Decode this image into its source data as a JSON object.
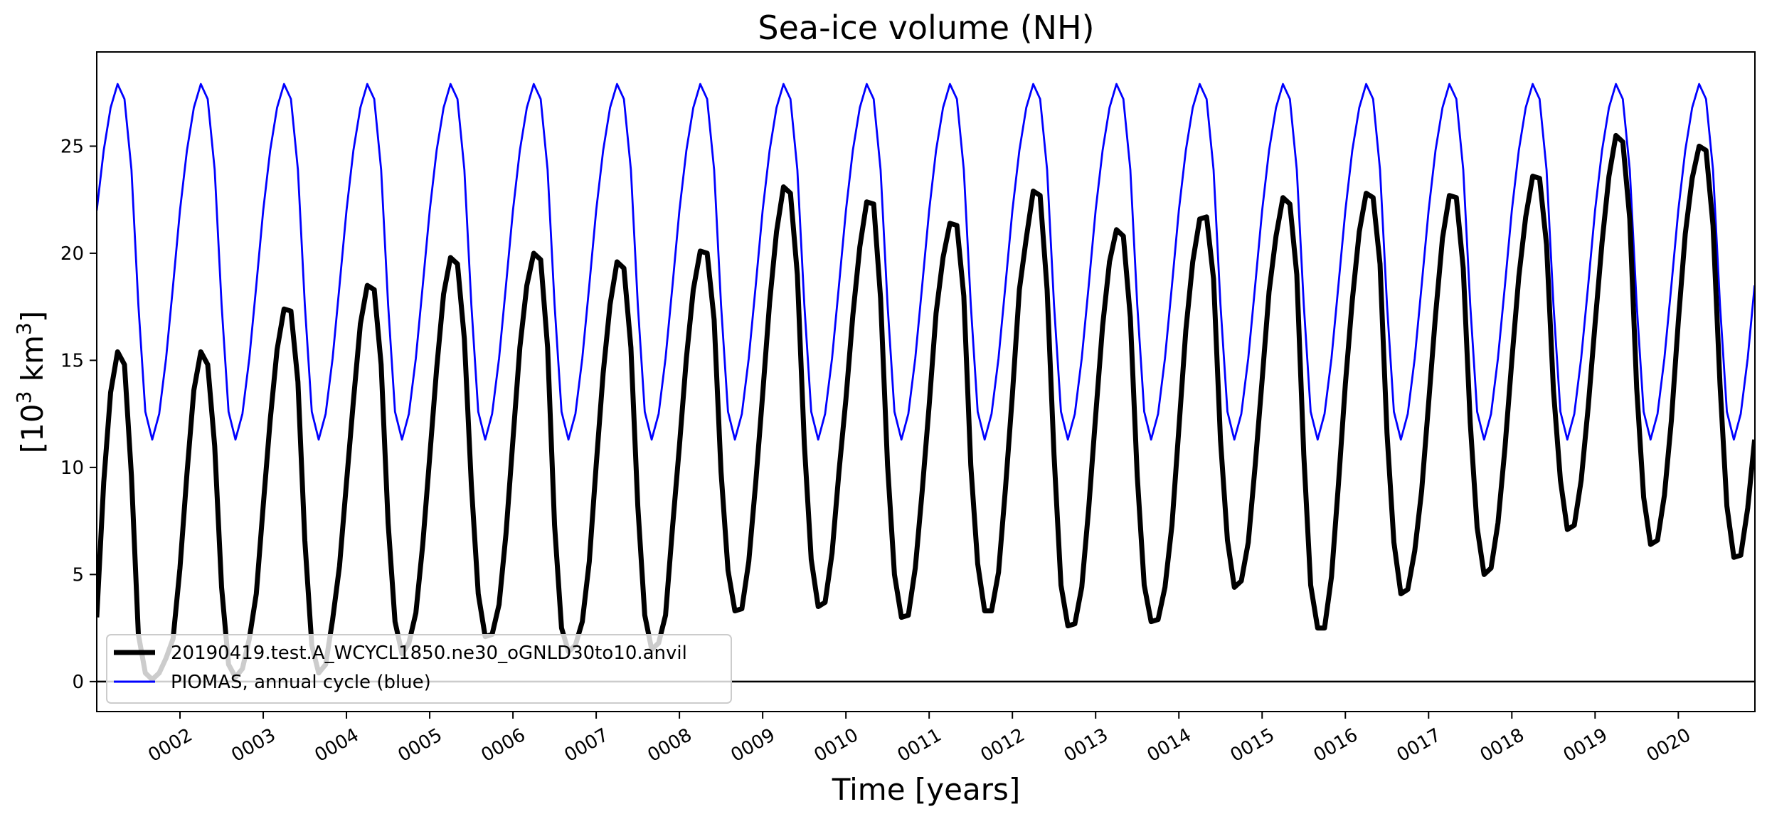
{
  "chart_data": {
    "type": "line",
    "title": "Sea-ice volume (NH)",
    "xlabel": "Time [years]",
    "ylabel": "[10³ km³]",
    "ylabel_base": "[10",
    "ylabel_exp1": "3",
    "ylabel_mid": " km",
    "ylabel_exp2": "3",
    "ylabel_end": "]",
    "xlim": [
      1.0,
      20.92
    ],
    "ylim": [
      -1.4,
      29.4
    ],
    "x_ticks": [
      {
        "value": 2,
        "label": "0002"
      },
      {
        "value": 3,
        "label": "0003"
      },
      {
        "value": 4,
        "label": "0004"
      },
      {
        "value": 5,
        "label": "0005"
      },
      {
        "value": 6,
        "label": "0006"
      },
      {
        "value": 7,
        "label": "0007"
      },
      {
        "value": 8,
        "label": "0008"
      },
      {
        "value": 9,
        "label": "0009"
      },
      {
        "value": 10,
        "label": "0010"
      },
      {
        "value": 11,
        "label": "0011"
      },
      {
        "value": 12,
        "label": "0012"
      },
      {
        "value": 13,
        "label": "0013"
      },
      {
        "value": 14,
        "label": "0014"
      },
      {
        "value": 15,
        "label": "0015"
      },
      {
        "value": 16,
        "label": "0016"
      },
      {
        "value": 17,
        "label": "0017"
      },
      {
        "value": 18,
        "label": "0018"
      },
      {
        "value": 19,
        "label": "0019"
      },
      {
        "value": 20,
        "label": "0020"
      }
    ],
    "y_ticks": [
      {
        "value": 0,
        "label": "0"
      },
      {
        "value": 5,
        "label": "5"
      },
      {
        "value": 10,
        "label": "10"
      },
      {
        "value": 15,
        "label": "15"
      },
      {
        "value": 20,
        "label": "20"
      },
      {
        "value": 25,
        "label": "25"
      }
    ],
    "zero_line": 0,
    "grid": false,
    "legend_position": "bottom-left",
    "series": [
      {
        "name": "20190419.test.A_WCYCL1850.ne30_oGNLD30to10.anvil",
        "color": "#000000",
        "style": "thick",
        "start_year": 1,
        "monthly_values_by_year": [
          [
            3.0,
            9.3,
            13.5,
            15.4,
            14.8,
            9.6,
            2.2,
            0.4,
            0.1,
            0.4,
            1.1,
            2.0
          ],
          [
            5.3,
            9.7,
            13.6,
            15.4,
            14.8,
            11.0,
            4.4,
            0.8,
            0.2,
            0.6,
            2.0,
            4.1
          ],
          [
            8.2,
            12.2,
            15.5,
            17.4,
            17.3,
            14.0,
            6.6,
            1.7,
            0.4,
            0.8,
            2.9,
            5.4
          ],
          [
            9.3,
            13.1,
            16.7,
            18.5,
            18.3,
            14.8,
            7.4,
            2.8,
            1.3,
            1.8,
            3.2,
            6.4
          ],
          [
            10.5,
            14.6,
            18.1,
            19.8,
            19.5,
            16.0,
            9.2,
            4.1,
            2.1,
            2.2,
            3.6,
            6.9
          ],
          [
            11.3,
            15.6,
            18.5,
            20.0,
            19.7,
            15.6,
            7.3,
            2.5,
            1.4,
            1.7,
            2.8,
            5.6
          ],
          [
            10.1,
            14.4,
            17.6,
            19.6,
            19.3,
            15.6,
            8.2,
            3.1,
            1.5,
            1.8,
            3.1,
            7.2
          ],
          [
            11.0,
            15.1,
            18.3,
            20.1,
            20.0,
            16.9,
            9.8,
            5.2,
            3.3,
            3.4,
            5.6,
            9.3
          ],
          [
            13.4,
            17.7,
            21.0,
            23.1,
            22.8,
            19.0,
            11.1,
            5.7,
            3.5,
            3.7,
            6.0,
            9.8
          ],
          [
            13.2,
            17.1,
            20.3,
            22.4,
            22.3,
            17.9,
            10.1,
            5.0,
            3.0,
            3.1,
            5.3,
            8.9
          ],
          [
            12.9,
            17.2,
            19.8,
            21.4,
            21.3,
            18.0,
            10.1,
            5.5,
            3.3,
            3.3,
            5.1,
            9.0
          ],
          [
            13.4,
            18.3,
            20.7,
            22.9,
            22.7,
            18.3,
            10.6,
            4.5,
            2.6,
            2.7,
            4.4,
            8.1
          ],
          [
            12.4,
            16.6,
            19.6,
            21.1,
            20.8,
            17.0,
            9.6,
            4.5,
            2.8,
            2.9,
            4.4,
            7.3
          ],
          [
            11.8,
            16.4,
            19.6,
            21.6,
            21.7,
            18.8,
            11.3,
            6.6,
            4.4,
            4.7,
            6.5,
            10.1
          ],
          [
            14.1,
            18.2,
            20.8,
            22.6,
            22.3,
            19.0,
            10.6,
            4.5,
            2.5,
            2.5,
            4.9,
            9.2
          ],
          [
            13.9,
            17.8,
            21.0,
            22.8,
            22.6,
            19.5,
            11.6,
            6.5,
            4.1,
            4.3,
            6.1,
            8.9
          ],
          [
            13.0,
            17.1,
            20.7,
            22.7,
            22.6,
            19.3,
            12.1,
            7.2,
            5.0,
            5.3,
            7.4,
            10.9
          ],
          [
            15.0,
            18.9,
            21.7,
            23.6,
            23.5,
            20.4,
            13.6,
            9.4,
            7.1,
            7.3,
            9.4,
            12.8
          ],
          [
            16.7,
            20.5,
            23.6,
            25.5,
            25.2,
            21.6,
            13.7,
            8.6,
            6.4,
            6.6,
            8.7,
            12.2
          ],
          [
            16.8,
            20.9,
            23.5,
            25.0,
            24.8,
            21.3,
            13.9,
            8.2,
            5.8,
            5.9,
            8.1,
            11.3
          ]
        ]
      },
      {
        "name": "PIOMAS, annual cycle (blue)",
        "color": "#0000ff",
        "style": "thin",
        "annual_cycle_monthly": [
          22.0,
          24.8,
          26.8,
          27.9,
          27.2,
          23.9,
          17.6,
          12.6,
          11.3,
          12.5,
          15.1,
          18.5
        ],
        "repeat_years": 20
      }
    ]
  }
}
